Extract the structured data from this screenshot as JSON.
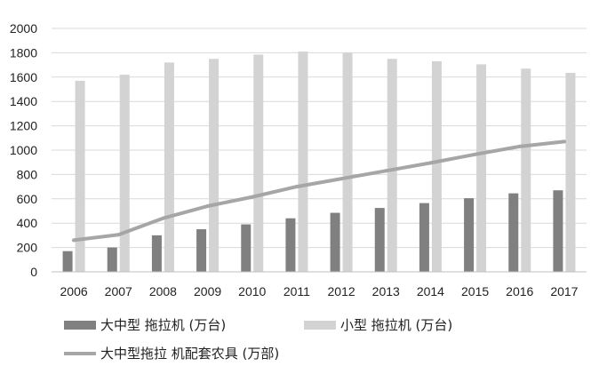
{
  "chart_data": {
    "type": "bar",
    "categories": [
      "2006",
      "2007",
      "2008",
      "2009",
      "2010",
      "2011",
      "2012",
      "2013",
      "2014",
      "2015",
      "2016",
      "2017"
    ],
    "series": [
      {
        "name": "大中型 拖拉机 (万台)",
        "kind": "bar",
        "color": "#808080",
        "values": [
          170,
          200,
          300,
          350,
          390,
          440,
          485,
          525,
          565,
          605,
          645,
          670
        ]
      },
      {
        "name": "小型 拖拉机 (万台)",
        "kind": "bar",
        "color": "#d3d3d3",
        "values": [
          1570,
          1620,
          1720,
          1750,
          1785,
          1810,
          1800,
          1750,
          1730,
          1705,
          1670,
          1635
        ]
      },
      {
        "name": "大中型拖拉 机配套农具 (万部)",
        "kind": "line",
        "color": "#a6a6a6",
        "values": [
          260,
          305,
          440,
          540,
          615,
          700,
          765,
          830,
          895,
          965,
          1030,
          1070
        ]
      }
    ],
    "y_ticks": [
      "0",
      "200",
      "400",
      "600",
      "800",
      "1000",
      "1200",
      "1400",
      "1600",
      "1800",
      "2000"
    ],
    "ylim": [
      0,
      2000
    ],
    "grid": true,
    "legend_position": "bottom-left",
    "title": "",
    "xlabel": "",
    "ylabel": ""
  }
}
